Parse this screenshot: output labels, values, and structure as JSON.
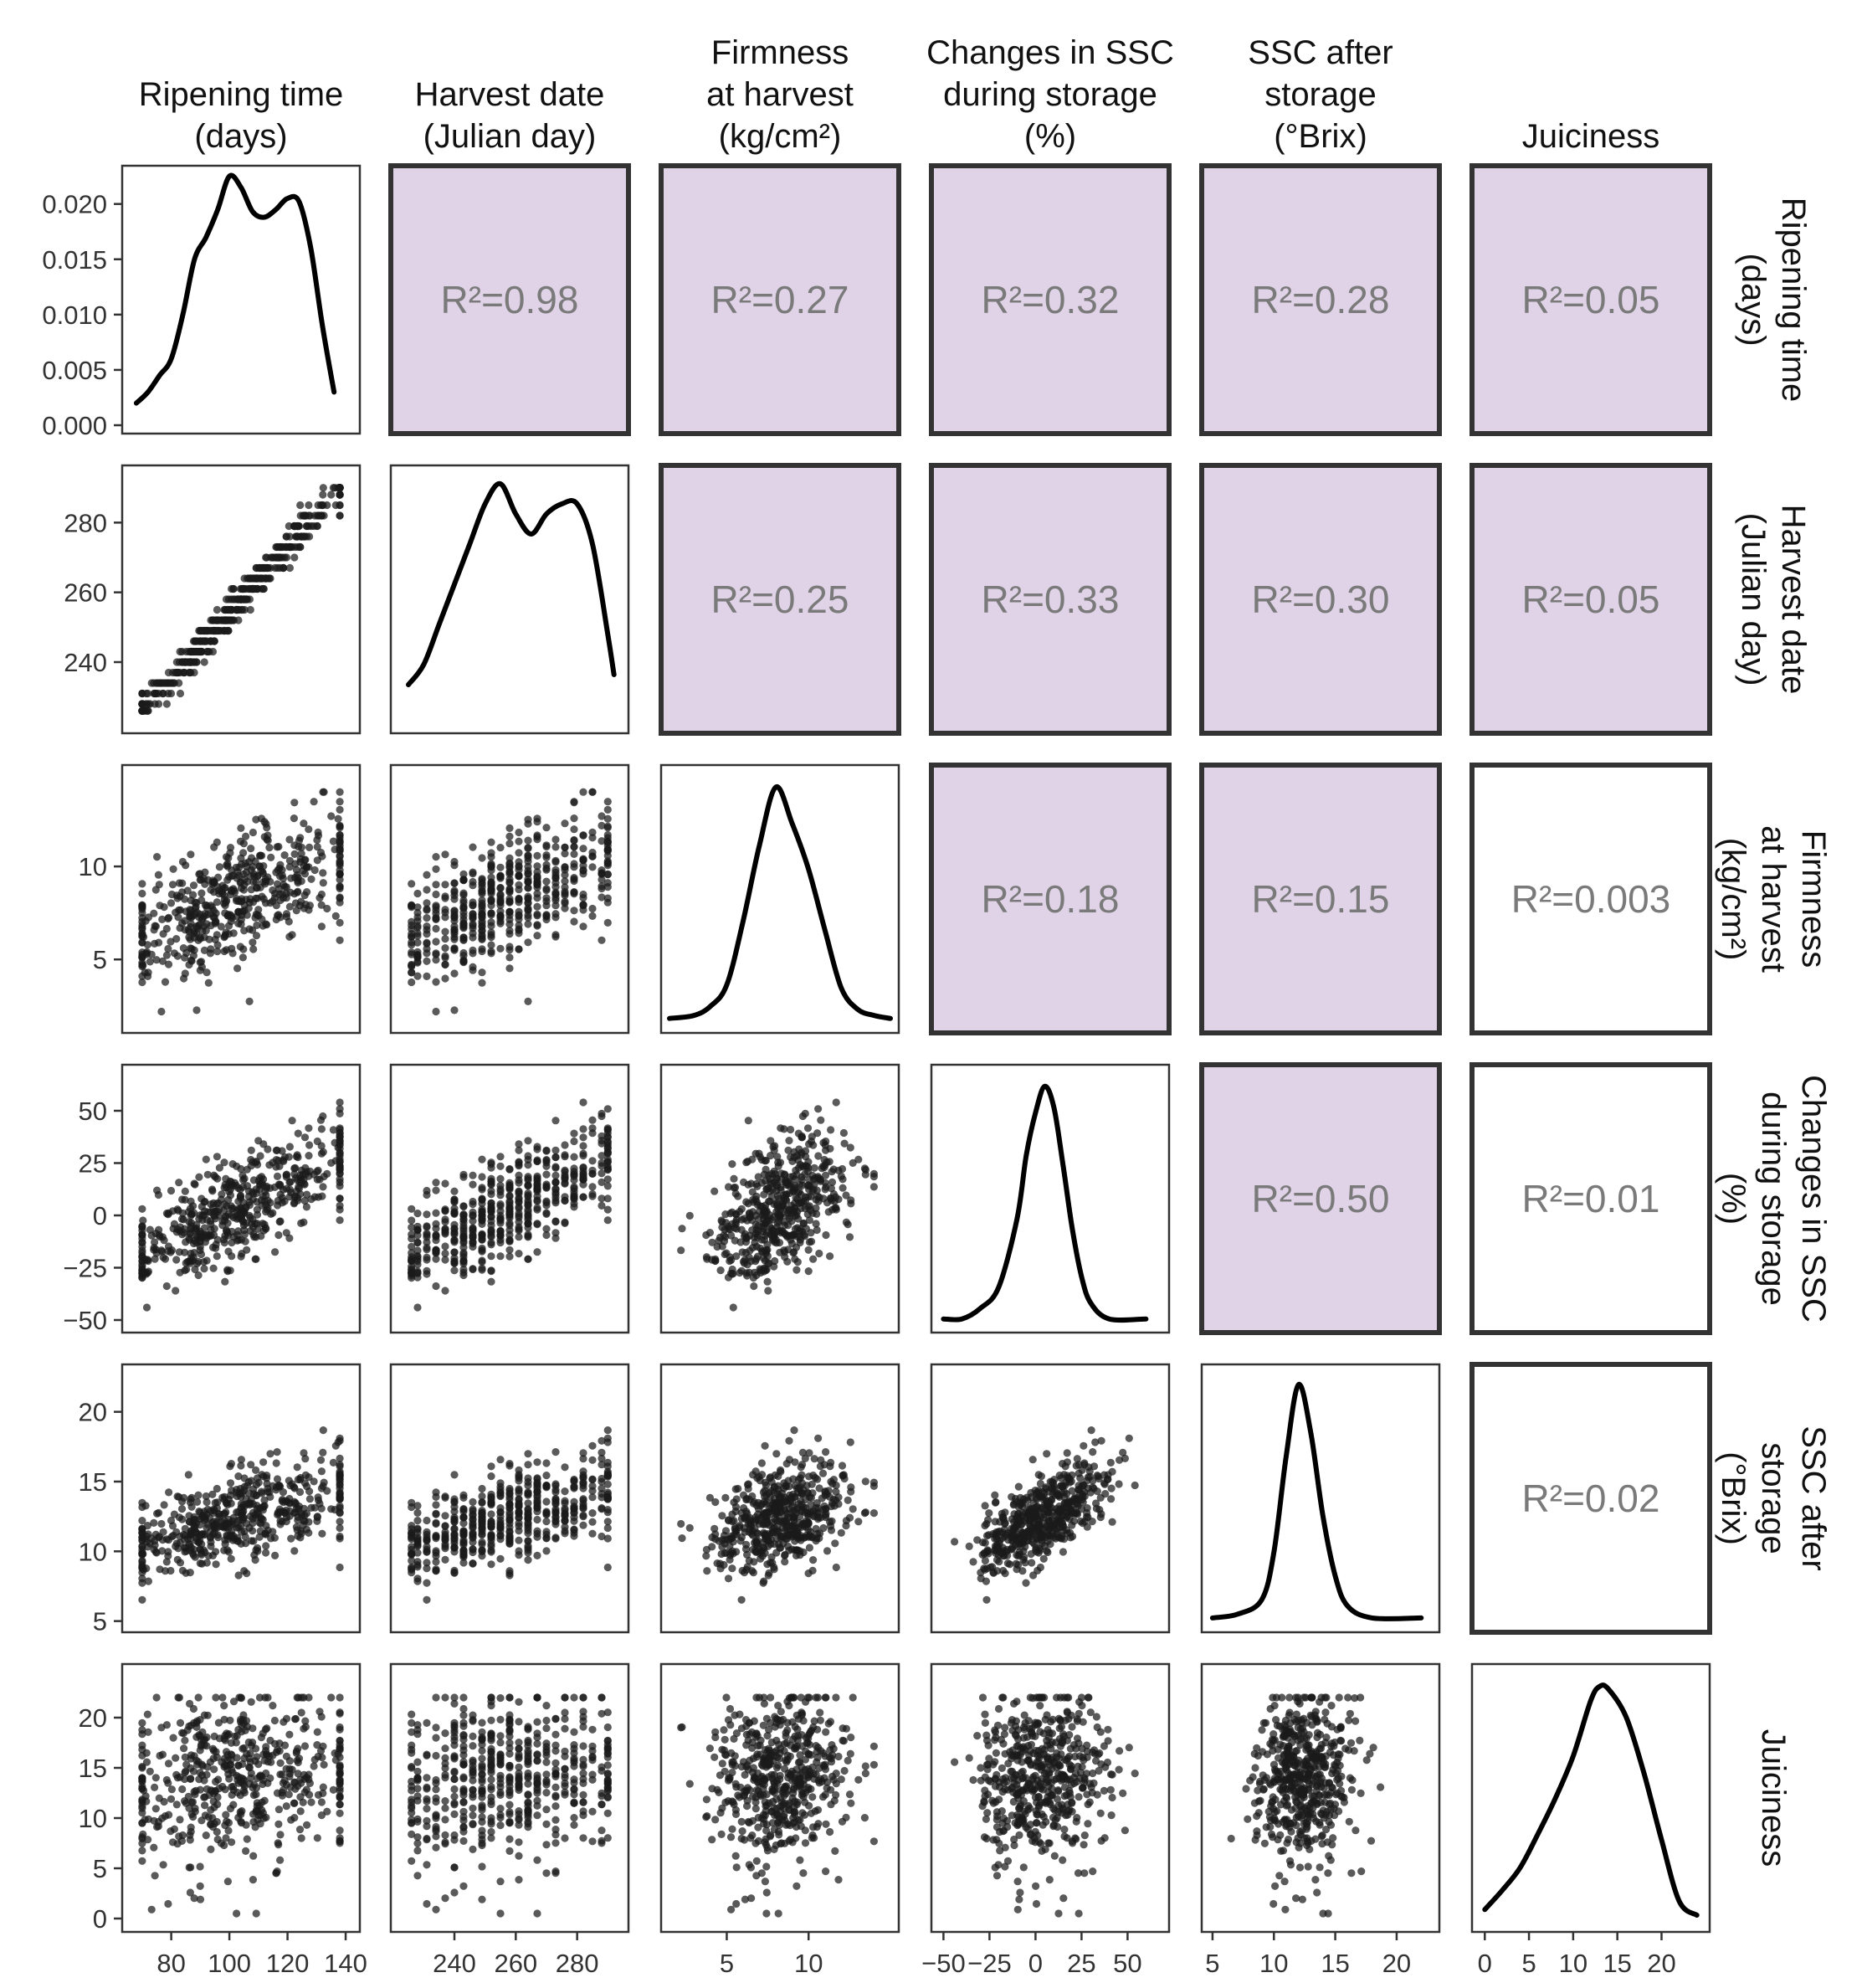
{
  "chart_data": {
    "type": "scatter-matrix",
    "variables": [
      {
        "key": "ripening",
        "label_lines": [
          "Ripening time",
          "(days)"
        ]
      },
      {
        "key": "harvest",
        "label_lines": [
          "Harvest date",
          "(Julian day)"
        ]
      },
      {
        "key": "firmness",
        "label_lines": [
          "Firmness",
          "at harvest",
          "(kg/cm²)"
        ]
      },
      {
        "key": "ssc_change",
        "label_lines": [
          "Changes in SSC",
          "during storage",
          "(%)"
        ]
      },
      {
        "key": "ssc_after",
        "label_lines": [
          "SSC after",
          "storage",
          "(°Brix)"
        ]
      },
      {
        "key": "juiciness",
        "label_lines": [
          "Juiciness"
        ]
      }
    ],
    "ranges": {
      "ripening": [
        66,
        142
      ],
      "harvest": [
        222,
        294
      ],
      "firmness": [
        1.5,
        15
      ],
      "ssc_change": [
        -52,
        68
      ],
      "ssc_after": [
        4.8,
        22.8
      ],
      "juiciness": [
        -0.5,
        24.5
      ]
    },
    "x_ticks": {
      "ripening": [
        80,
        100,
        120,
        140
      ],
      "harvest": [
        240,
        260,
        280
      ],
      "firmness": [
        5,
        10
      ],
      "ssc_change": [
        -50,
        -25,
        0,
        25,
        50
      ],
      "ssc_after": [
        5,
        10,
        15,
        20
      ],
      "juiciness": [
        0,
        5,
        10,
        15,
        20
      ]
    },
    "x_tick_labels": {
      "ssc_change": [
        "−50",
        "−25",
        "0",
        "25",
        "50"
      ]
    },
    "y_ticks": {
      "density": [
        0.0,
        0.005,
        0.01,
        0.015,
        0.02
      ],
      "harvest": [
        240,
        260,
        280
      ],
      "firmness": [
        5,
        10
      ],
      "ssc_change": [
        -50,
        -25,
        0,
        25,
        50
      ],
      "ssc_after": [
        5,
        10,
        15,
        20
      ],
      "juiciness": [
        0,
        5,
        10,
        15,
        20
      ]
    },
    "y_tick_labels": {
      "density": [
        "0.000",
        "0.005",
        "0.010",
        "0.015",
        "0.020"
      ],
      "ssc_change": [
        "−50",
        "−25",
        "0",
        "25",
        "50"
      ]
    },
    "density_ylim": [
      0,
      0.0227
    ],
    "densities": {
      "ripening": [
        [
          68,
          0.002
        ],
        [
          72,
          0.003
        ],
        [
          76,
          0.0045
        ],
        [
          80,
          0.006
        ],
        [
          84,
          0.01
        ],
        [
          88,
          0.015
        ],
        [
          92,
          0.017
        ],
        [
          96,
          0.0195
        ],
        [
          100,
          0.0225
        ],
        [
          104,
          0.0215
        ],
        [
          108,
          0.0193
        ],
        [
          112,
          0.0188
        ],
        [
          116,
          0.0195
        ],
        [
          120,
          0.0205
        ],
        [
          124,
          0.0202
        ],
        [
          128,
          0.016
        ],
        [
          132,
          0.009
        ],
        [
          136,
          0.003
        ]
      ],
      "harvest": [
        [
          225,
          0.004
        ],
        [
          230,
          0.006
        ],
        [
          235,
          0.01
        ],
        [
          240,
          0.014
        ],
        [
          245,
          0.018
        ],
        [
          250,
          0.022
        ],
        [
          255,
          0.024
        ],
        [
          260,
          0.021
        ],
        [
          265,
          0.019
        ],
        [
          270,
          0.021
        ],
        [
          275,
          0.022
        ],
        [
          280,
          0.022
        ],
        [
          285,
          0.018
        ],
        [
          290,
          0.009
        ],
        [
          292,
          0.005
        ]
      ],
      "firmness": [
        [
          1.5,
          0.004
        ],
        [
          3,
          0.006
        ],
        [
          4,
          0.012
        ],
        [
          5,
          0.026
        ],
        [
          6,
          0.068
        ],
        [
          7,
          0.118
        ],
        [
          8,
          0.156
        ],
        [
          9,
          0.132
        ],
        [
          10,
          0.102
        ],
        [
          11,
          0.062
        ],
        [
          12,
          0.024
        ],
        [
          13,
          0.01
        ],
        [
          14,
          0.006
        ],
        [
          15,
          0.004
        ]
      ],
      "ssc_change": [
        [
          -50,
          0.001
        ],
        [
          -40,
          0.001
        ],
        [
          -30,
          0.003
        ],
        [
          -20,
          0.007
        ],
        [
          -10,
          0.02
        ],
        [
          -5,
          0.032
        ],
        [
          0,
          0.04
        ],
        [
          5,
          0.045
        ],
        [
          10,
          0.041
        ],
        [
          15,
          0.03
        ],
        [
          20,
          0.018
        ],
        [
          25,
          0.009
        ],
        [
          30,
          0.004
        ],
        [
          40,
          0.001
        ],
        [
          60,
          0.001
        ]
      ],
      "ssc_after": [
        [
          5,
          0.005
        ],
        [
          7,
          0.008
        ],
        [
          9,
          0.02
        ],
        [
          10,
          0.06
        ],
        [
          11,
          0.14
        ],
        [
          12,
          0.2
        ],
        [
          13,
          0.16
        ],
        [
          14,
          0.09
        ],
        [
          15,
          0.04
        ],
        [
          16,
          0.015
        ],
        [
          18,
          0.005
        ],
        [
          22,
          0.005
        ]
      ],
      "juiciness": [
        [
          0,
          0.005
        ],
        [
          2,
          0.012
        ],
        [
          4,
          0.02
        ],
        [
          6,
          0.032
        ],
        [
          8,
          0.045
        ],
        [
          10,
          0.06
        ],
        [
          12,
          0.08
        ],
        [
          13,
          0.085
        ],
        [
          14,
          0.084
        ],
        [
          16,
          0.074
        ],
        [
          18,
          0.054
        ],
        [
          20,
          0.03
        ],
        [
          22,
          0.008
        ],
        [
          24,
          0.003
        ]
      ]
    },
    "density_ymax": {
      "harvest": 0.025,
      "firmness": 0.165,
      "ssc_change": 0.0475,
      "ssc_after": 0.21,
      "juiciness": 0.09
    },
    "correlations": [
      {
        "row": 0,
        "col": 1,
        "label": "R²=0.98",
        "significant": true
      },
      {
        "row": 0,
        "col": 2,
        "label": "R²=0.27",
        "significant": true
      },
      {
        "row": 0,
        "col": 3,
        "label": "R²=0.32",
        "significant": true
      },
      {
        "row": 0,
        "col": 4,
        "label": "R²=0.28",
        "significant": true
      },
      {
        "row": 0,
        "col": 5,
        "label": "R²=0.05",
        "significant": true
      },
      {
        "row": 1,
        "col": 2,
        "label": "R²=0.25",
        "significant": true
      },
      {
        "row": 1,
        "col": 3,
        "label": "R²=0.33",
        "significant": true
      },
      {
        "row": 1,
        "col": 4,
        "label": "R²=0.30",
        "significant": true
      },
      {
        "row": 1,
        "col": 5,
        "label": "R²=0.05",
        "significant": true
      },
      {
        "row": 2,
        "col": 3,
        "label": "R²=0.18",
        "significant": true
      },
      {
        "row": 2,
        "col": 4,
        "label": "R²=0.15",
        "significant": true
      },
      {
        "row": 2,
        "col": 5,
        "label": "R²=0.003",
        "significant": false
      },
      {
        "row": 3,
        "col": 4,
        "label": "R²=0.50",
        "significant": true
      },
      {
        "row": 3,
        "col": 5,
        "label": "R²=0.01",
        "significant": false
      },
      {
        "row": 4,
        "col": 5,
        "label": "R²=0.02",
        "significant": false
      }
    ],
    "highlight_color": "#e0d3e7",
    "point_color": "#1a1a1a",
    "line_color": "#000000"
  }
}
